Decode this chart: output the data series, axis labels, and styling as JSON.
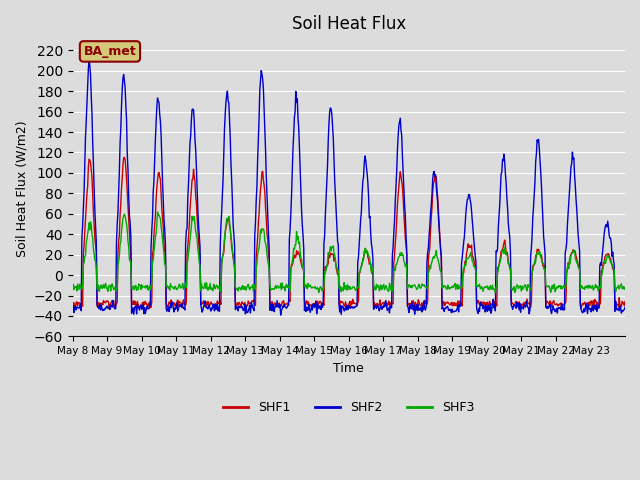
{
  "title": "Soil Heat Flux",
  "xlabel": "Time",
  "ylabel": "Soil Heat Flux (W/m2)",
  "ylim": [
    -60,
    230
  ],
  "yticks": [
    -60,
    -40,
    -20,
    0,
    20,
    40,
    60,
    80,
    100,
    120,
    140,
    160,
    180,
    200,
    220
  ],
  "bg_color": "#dcdcdc",
  "plot_bg_color": "#dcdcdc",
  "annotation_text": "BA_met",
  "annotation_bg": "#d4c87a",
  "annotation_border": "#8B0000",
  "colors": {
    "SHF1": "#cc0000",
    "SHF2": "#0000cc",
    "SHF3": "#00aa00"
  },
  "x_tick_labels": [
    "May 8",
    "May 9",
    "May 10",
    "May 11",
    "May 12",
    "May 13",
    "May 14",
    "May 15",
    "May 16",
    "May 17",
    "May 18",
    "May 19",
    "May 20",
    "May 21",
    "May 22",
    "May 23"
  ],
  "n_days": 16,
  "start_day": 8,
  "points_per_day": 48,
  "shf2_peaks": [
    205,
    195,
    175,
    165,
    180,
    200,
    173,
    163,
    113,
    150,
    99,
    79,
    115,
    130,
    115,
    50
  ],
  "shf1_peaks": [
    113,
    117,
    100,
    100,
    55,
    100,
    22,
    22,
    22,
    99,
    99,
    30,
    30,
    25,
    25,
    22
  ],
  "shf3_peaks": [
    50,
    60,
    60,
    57,
    57,
    45,
    36,
    28,
    25,
    22,
    20,
    20,
    25,
    22,
    22,
    18
  ]
}
